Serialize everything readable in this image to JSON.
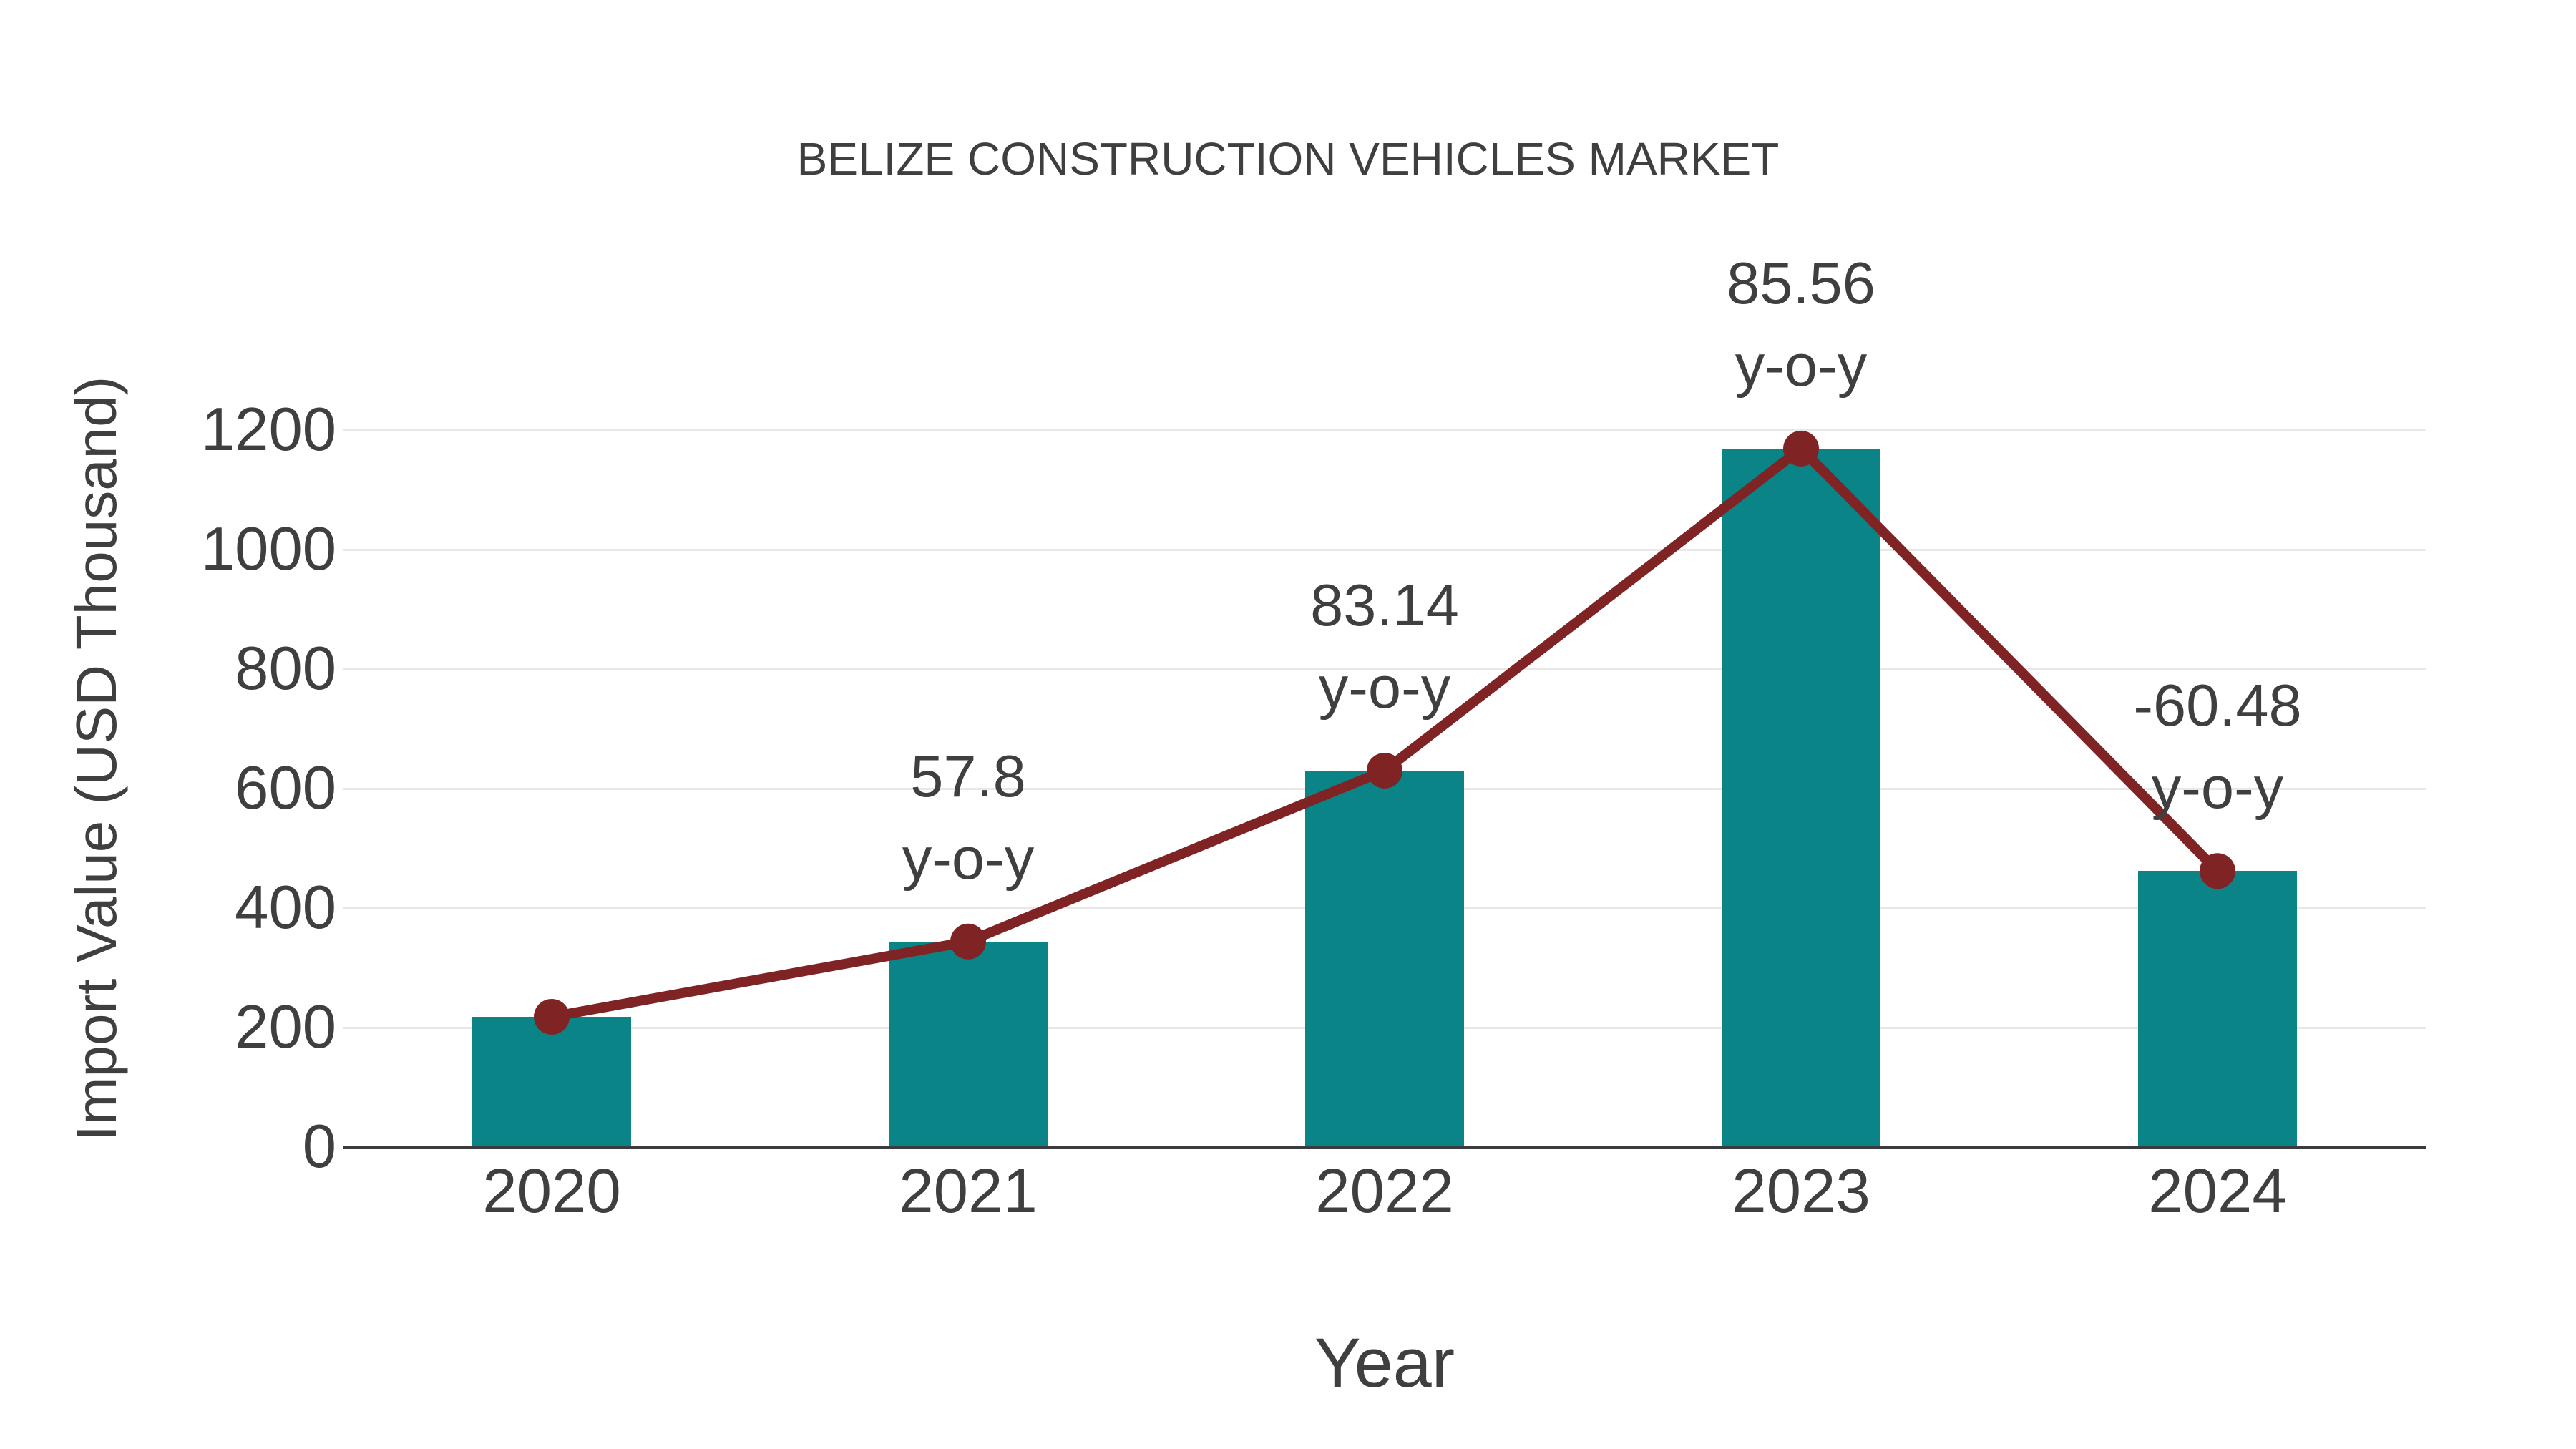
{
  "chart_data": {
    "type": "bar",
    "title": "BELIZE CONSTRUCTION VEHICLES MARKET",
    "xlabel": "Year",
    "ylabel": "Import Value (USD Thousand)",
    "categories": [
      "2020",
      "2021",
      "2022",
      "2023",
      "2024"
    ],
    "series": [
      {
        "name": "Import Value bars",
        "type": "bar",
        "color": "#0a8486",
        "values": [
          218,
          344,
          630,
          1169,
          462
        ]
      },
      {
        "name": "Import Value trend line",
        "type": "line",
        "color": "#802325",
        "values": [
          218,
          344,
          630,
          1169,
          462
        ]
      }
    ],
    "yoy_annotations": [
      {
        "category": "2021",
        "value": "57.8",
        "label": "y-o-y"
      },
      {
        "category": "2022",
        "value": "83.14",
        "label": "y-o-y"
      },
      {
        "category": "2023",
        "value": "85.56",
        "label": "y-o-y"
      },
      {
        "category": "2024",
        "value": "-60.48",
        "label": "y-o-y"
      }
    ],
    "ylim": [
      0,
      1200
    ],
    "yticks": [
      "0",
      "200",
      "400",
      "600",
      "800",
      "1000",
      "1200"
    ],
    "grid": true,
    "legend_position": "none"
  },
  "colors": {
    "bar": "#0a8486",
    "line": "#802325",
    "marker": "#802325",
    "text": "#3f3f3f",
    "gridline": "#e8e8e8",
    "axis_line": "#3c3c3c",
    "background": "#ffffff"
  }
}
